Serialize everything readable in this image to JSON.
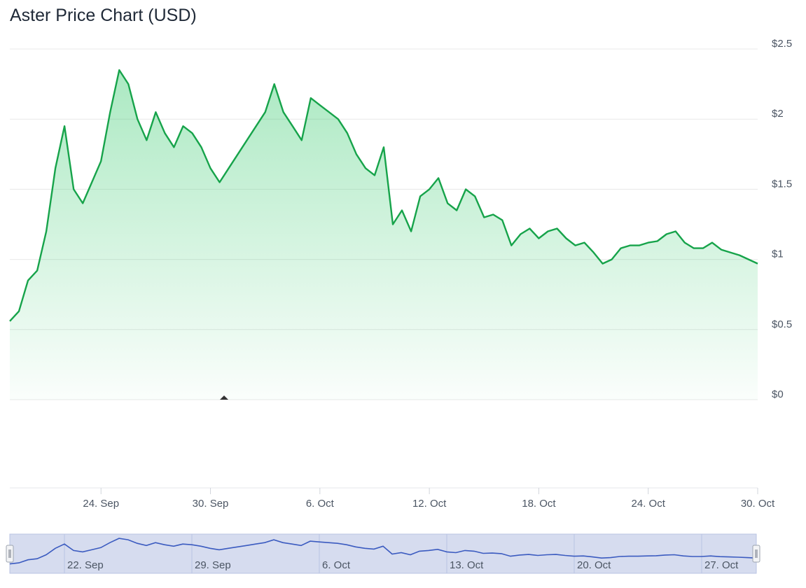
{
  "chart_data": {
    "type": "area",
    "title": "Aster Price Chart (USD)",
    "xlabel": "",
    "ylabel": "",
    "ylim": [
      0,
      2.5
    ],
    "grid": true,
    "colors": {
      "line": "#16a34a",
      "fill": "#22c55e",
      "navigator_line": "#3b5bc0",
      "navigator_fill": "#d6dcef"
    },
    "y_ticks": [
      {
        "value": 0,
        "label": "$0"
      },
      {
        "value": 0.5,
        "label": "$0.5"
      },
      {
        "value": 1,
        "label": "$1"
      },
      {
        "value": 1.5,
        "label": "$1.5"
      },
      {
        "value": 2,
        "label": "$2"
      },
      {
        "value": 2.5,
        "label": "$2.5"
      }
    ],
    "x_ticks": [
      {
        "date": "2025-09-24",
        "label": "24. Sep"
      },
      {
        "date": "2025-09-30",
        "label": "30. Sep"
      },
      {
        "date": "2025-10-06",
        "label": "6. Oct"
      },
      {
        "date": "2025-10-12",
        "label": "12. Oct"
      },
      {
        "date": "2025-10-18",
        "label": "18. Oct"
      },
      {
        "date": "2025-10-24",
        "label": "24. Oct"
      },
      {
        "date": "2025-10-30",
        "label": "30. Oct"
      }
    ],
    "navigator_ticks": [
      {
        "date": "2025-09-22",
        "label": "22. Sep"
      },
      {
        "date": "2025-09-29",
        "label": "29. Sep"
      },
      {
        "date": "2025-10-06",
        "label": "6. Oct"
      },
      {
        "date": "2025-10-13",
        "label": "13. Oct"
      },
      {
        "date": "2025-10-20",
        "label": "20. Oct"
      },
      {
        "date": "2025-10-27",
        "label": "27. Oct"
      }
    ],
    "x_range": [
      "2025-09-19",
      "2025-10-30"
    ],
    "series": [
      {
        "values": [
          [
            "2025-09-19",
            0.56
          ],
          [
            "2025-09-19T12",
            0.63
          ],
          [
            "2025-09-20",
            0.85
          ],
          [
            "2025-09-20T12",
            0.92
          ],
          [
            "2025-09-21",
            1.2
          ],
          [
            "2025-09-21T12",
            1.65
          ],
          [
            "2025-09-22",
            1.95
          ],
          [
            "2025-09-22T12",
            1.5
          ],
          [
            "2025-09-23",
            1.4
          ],
          [
            "2025-09-23T12",
            1.55
          ],
          [
            "2025-09-24",
            1.7
          ],
          [
            "2025-09-24T12",
            2.05
          ],
          [
            "2025-09-25",
            2.35
          ],
          [
            "2025-09-25T12",
            2.25
          ],
          [
            "2025-09-26",
            2.0
          ],
          [
            "2025-09-26T12",
            1.85
          ],
          [
            "2025-09-27",
            2.05
          ],
          [
            "2025-09-27T12",
            1.9
          ],
          [
            "2025-09-28",
            1.8
          ],
          [
            "2025-09-28T12",
            1.95
          ],
          [
            "2025-09-29",
            1.9
          ],
          [
            "2025-09-29T12",
            1.8
          ],
          [
            "2025-09-30",
            1.65
          ],
          [
            "2025-09-30T12",
            1.55
          ],
          [
            "2025-10-01",
            1.65
          ],
          [
            "2025-10-01T12",
            1.75
          ],
          [
            "2025-10-02",
            1.85
          ],
          [
            "2025-10-02T12",
            1.95
          ],
          [
            "2025-10-03",
            2.05
          ],
          [
            "2025-10-03T12",
            2.25
          ],
          [
            "2025-10-04",
            2.05
          ],
          [
            "2025-10-04T12",
            1.95
          ],
          [
            "2025-10-05",
            1.85
          ],
          [
            "2025-10-05T12",
            2.15
          ],
          [
            "2025-10-06",
            2.1
          ],
          [
            "2025-10-06T12",
            2.05
          ],
          [
            "2025-10-07",
            2.0
          ],
          [
            "2025-10-07T12",
            1.9
          ],
          [
            "2025-10-08",
            1.75
          ],
          [
            "2025-10-08T12",
            1.65
          ],
          [
            "2025-10-09",
            1.6
          ],
          [
            "2025-10-09T12",
            1.8
          ],
          [
            "2025-10-10",
            1.25
          ],
          [
            "2025-10-10T12",
            1.35
          ],
          [
            "2025-10-11",
            1.2
          ],
          [
            "2025-10-11T12",
            1.45
          ],
          [
            "2025-10-12",
            1.5
          ],
          [
            "2025-10-12T12",
            1.58
          ],
          [
            "2025-10-13",
            1.4
          ],
          [
            "2025-10-13T12",
            1.35
          ],
          [
            "2025-10-14",
            1.5
          ],
          [
            "2025-10-14T12",
            1.45
          ],
          [
            "2025-10-15",
            1.3
          ],
          [
            "2025-10-15T12",
            1.32
          ],
          [
            "2025-10-16",
            1.28
          ],
          [
            "2025-10-16T12",
            1.1
          ],
          [
            "2025-10-17",
            1.18
          ],
          [
            "2025-10-17T12",
            1.22
          ],
          [
            "2025-10-18",
            1.15
          ],
          [
            "2025-10-18T12",
            1.2
          ],
          [
            "2025-10-19",
            1.22
          ],
          [
            "2025-10-19T12",
            1.15
          ],
          [
            "2025-10-20",
            1.1
          ],
          [
            "2025-10-20T12",
            1.12
          ],
          [
            "2025-10-21",
            1.05
          ],
          [
            "2025-10-21T12",
            0.97
          ],
          [
            "2025-10-22",
            1.0
          ],
          [
            "2025-10-22T12",
            1.08
          ],
          [
            "2025-10-23",
            1.1
          ],
          [
            "2025-10-23T12",
            1.1
          ],
          [
            "2025-10-24",
            1.12
          ],
          [
            "2025-10-24T12",
            1.13
          ],
          [
            "2025-10-25",
            1.18
          ],
          [
            "2025-10-25T12",
            1.2
          ],
          [
            "2025-10-26",
            1.12
          ],
          [
            "2025-10-26T12",
            1.08
          ],
          [
            "2025-10-27",
            1.08
          ],
          [
            "2025-10-27T12",
            1.12
          ],
          [
            "2025-10-28",
            1.07
          ],
          [
            "2025-10-28T12",
            1.05
          ],
          [
            "2025-10-29",
            1.03
          ],
          [
            "2025-10-29T12",
            1.0
          ],
          [
            "2025-10-30",
            0.97
          ]
        ]
      }
    ]
  }
}
